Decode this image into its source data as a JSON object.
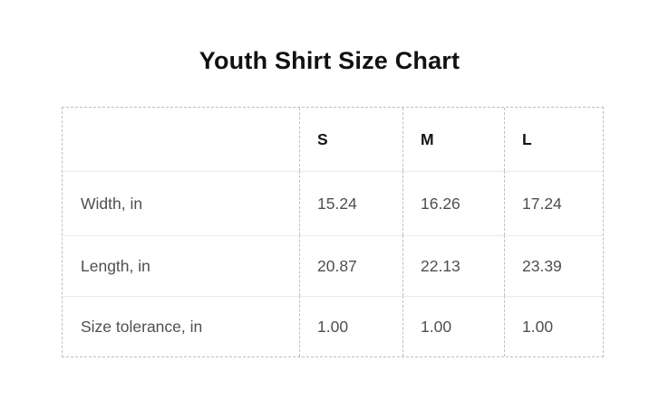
{
  "chart_data": {
    "type": "table",
    "title": "Youth Shirt Size Chart",
    "columns": [
      "",
      "S",
      "M",
      "L"
    ],
    "rows": [
      {
        "label": "Width, in",
        "values": [
          "15.24",
          "16.26",
          "17.24"
        ]
      },
      {
        "label": "Length, in",
        "values": [
          "20.87",
          "22.13",
          "23.39"
        ]
      },
      {
        "label": "Size tolerance, in",
        "values": [
          "1.00",
          "1.00",
          "1.00"
        ]
      }
    ],
    "layout": {
      "grid": "dashed outer border and column separators, light solid row separators",
      "legend_position": "none"
    }
  },
  "colors": {
    "background": "#ffffff",
    "title_text": "#111111",
    "header_text": "#151515",
    "cell_text": "#4f4f4f",
    "dashed_border": "#bfbfbf",
    "row_separator": "#e9e9e9"
  }
}
